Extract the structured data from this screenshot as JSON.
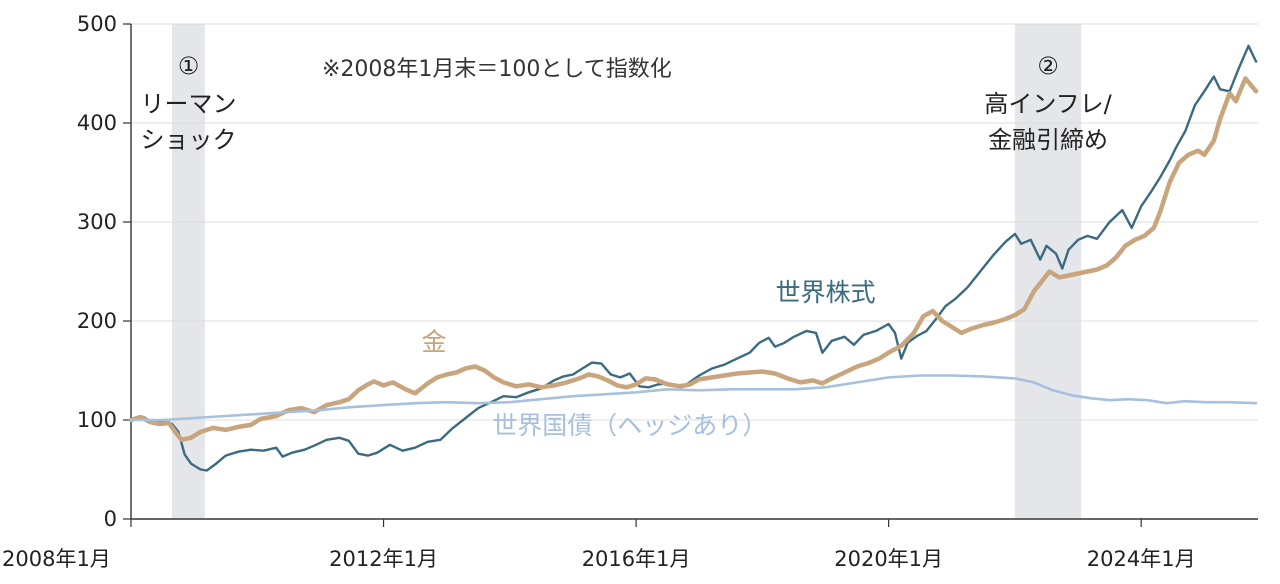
{
  "chart_data": {
    "type": "line",
    "title": "",
    "note": "※2008年1月末＝100として指数化",
    "xlabel": "",
    "ylabel": "",
    "x_range": [
      2008.0,
      2025.85
    ],
    "ylim": [
      0,
      500
    ],
    "yticks": [
      0,
      100,
      200,
      300,
      400,
      500
    ],
    "xticks": [
      {
        "value": 2008.0,
        "label": "2008年1月"
      },
      {
        "value": 2012.0,
        "label": "2012年1月"
      },
      {
        "value": 2016.0,
        "label": "2016年1月"
      },
      {
        "value": 2020.0,
        "label": "2020年1月"
      },
      {
        "value": 2024.0,
        "label": "2024年1月"
      }
    ],
    "grid": "horizontal",
    "shaded_periods": [
      {
        "marker": "①",
        "label_lines": [
          "リーマン",
          "ショック"
        ],
        "x_start": 2008.65,
        "x_end": 2009.17
      },
      {
        "marker": "②",
        "label_lines": [
          "高インフレ/",
          "金融引締め"
        ],
        "x_start": 2022.0,
        "x_end": 2023.05
      }
    ],
    "series": [
      {
        "name": "世界株式",
        "color": "#3b6b80",
        "width": 2.4,
        "label_pos": {
          "x": 2019.0,
          "y": 220
        },
        "points": [
          [
            2008.0,
            100
          ],
          [
            2008.2,
            103
          ],
          [
            2008.35,
            97
          ],
          [
            2008.5,
            100
          ],
          [
            2008.65,
            96
          ],
          [
            2008.75,
            88
          ],
          [
            2008.85,
            65
          ],
          [
            2008.95,
            56
          ],
          [
            2009.1,
            50
          ],
          [
            2009.2,
            49
          ],
          [
            2009.35,
            56
          ],
          [
            2009.5,
            64
          ],
          [
            2009.7,
            68
          ],
          [
            2009.9,
            70
          ],
          [
            2010.1,
            69
          ],
          [
            2010.3,
            72
          ],
          [
            2010.4,
            63
          ],
          [
            2010.55,
            67
          ],
          [
            2010.75,
            70
          ],
          [
            2010.9,
            74
          ],
          [
            2011.1,
            80
          ],
          [
            2011.3,
            82
          ],
          [
            2011.45,
            79
          ],
          [
            2011.6,
            66
          ],
          [
            2011.75,
            64
          ],
          [
            2011.9,
            67
          ],
          [
            2012.1,
            75
          ],
          [
            2012.3,
            69
          ],
          [
            2012.5,
            72
          ],
          [
            2012.7,
            78
          ],
          [
            2012.9,
            80
          ],
          [
            2013.1,
            92
          ],
          [
            2013.3,
            102
          ],
          [
            2013.5,
            112
          ],
          [
            2013.7,
            118
          ],
          [
            2013.9,
            124
          ],
          [
            2014.1,
            123
          ],
          [
            2014.3,
            128
          ],
          [
            2014.5,
            132
          ],
          [
            2014.7,
            140
          ],
          [
            2014.85,
            144
          ],
          [
            2015.0,
            146
          ],
          [
            2015.15,
            152
          ],
          [
            2015.3,
            158
          ],
          [
            2015.45,
            157
          ],
          [
            2015.6,
            146
          ],
          [
            2015.75,
            143
          ],
          [
            2015.9,
            147
          ],
          [
            2016.05,
            134
          ],
          [
            2016.2,
            133
          ],
          [
            2016.35,
            136
          ],
          [
            2016.5,
            137
          ],
          [
            2016.65,
            135
          ],
          [
            2016.8,
            136
          ],
          [
            2017.0,
            145
          ],
          [
            2017.2,
            152
          ],
          [
            2017.4,
            156
          ],
          [
            2017.6,
            162
          ],
          [
            2017.8,
            168
          ],
          [
            2017.95,
            178
          ],
          [
            2018.1,
            183
          ],
          [
            2018.2,
            174
          ],
          [
            2018.35,
            178
          ],
          [
            2018.5,
            184
          ],
          [
            2018.7,
            190
          ],
          [
            2018.85,
            188
          ],
          [
            2018.95,
            168
          ],
          [
            2019.1,
            180
          ],
          [
            2019.3,
            184
          ],
          [
            2019.45,
            176
          ],
          [
            2019.6,
            186
          ],
          [
            2019.8,
            190
          ],
          [
            2020.0,
            197
          ],
          [
            2020.1,
            188
          ],
          [
            2020.2,
            162
          ],
          [
            2020.3,
            178
          ],
          [
            2020.45,
            185
          ],
          [
            2020.6,
            190
          ],
          [
            2020.75,
            202
          ],
          [
            2020.9,
            215
          ],
          [
            2021.05,
            222
          ],
          [
            2021.25,
            234
          ],
          [
            2021.45,
            250
          ],
          [
            2021.65,
            266
          ],
          [
            2021.85,
            280
          ],
          [
            2022.0,
            288
          ],
          [
            2022.1,
            278
          ],
          [
            2022.25,
            282
          ],
          [
            2022.4,
            262
          ],
          [
            2022.5,
            276
          ],
          [
            2022.65,
            268
          ],
          [
            2022.75,
            253
          ],
          [
            2022.85,
            272
          ],
          [
            2023.0,
            282
          ],
          [
            2023.15,
            286
          ],
          [
            2023.3,
            283
          ],
          [
            2023.5,
            300
          ],
          [
            2023.7,
            312
          ],
          [
            2023.85,
            294
          ],
          [
            2024.0,
            316
          ],
          [
            2024.15,
            330
          ],
          [
            2024.3,
            345
          ],
          [
            2024.45,
            362
          ],
          [
            2024.55,
            375
          ],
          [
            2024.7,
            392
          ],
          [
            2024.85,
            418
          ],
          [
            2025.0,
            432
          ],
          [
            2025.15,
            447
          ],
          [
            2025.25,
            434
          ],
          [
            2025.4,
            432
          ],
          [
            2025.55,
            456
          ],
          [
            2025.7,
            478
          ],
          [
            2025.82,
            462
          ]
        ]
      },
      {
        "name": "金",
        "color": "#c8a57c",
        "width": 4.5,
        "label_pos": {
          "x": 2012.8,
          "y": 170
        },
        "points": [
          [
            2008.0,
            100
          ],
          [
            2008.15,
            103
          ],
          [
            2008.3,
            98
          ],
          [
            2008.45,
            96
          ],
          [
            2008.6,
            97
          ],
          [
            2008.7,
            88
          ],
          [
            2008.8,
            80
          ],
          [
            2008.95,
            82
          ],
          [
            2009.1,
            88
          ],
          [
            2009.3,
            92
          ],
          [
            2009.5,
            90
          ],
          [
            2009.7,
            93
          ],
          [
            2009.9,
            95
          ],
          [
            2010.05,
            101
          ],
          [
            2010.3,
            104
          ],
          [
            2010.5,
            110
          ],
          [
            2010.7,
            112
          ],
          [
            2010.9,
            108
          ],
          [
            2011.1,
            115
          ],
          [
            2011.3,
            118
          ],
          [
            2011.45,
            121
          ],
          [
            2011.6,
            130
          ],
          [
            2011.75,
            136
          ],
          [
            2011.85,
            139
          ],
          [
            2012.0,
            135
          ],
          [
            2012.15,
            138
          ],
          [
            2012.35,
            131
          ],
          [
            2012.5,
            127
          ],
          [
            2012.7,
            137
          ],
          [
            2012.85,
            143
          ],
          [
            2013.0,
            146
          ],
          [
            2013.15,
            148
          ],
          [
            2013.3,
            152
          ],
          [
            2013.45,
            154
          ],
          [
            2013.6,
            150
          ],
          [
            2013.75,
            143
          ],
          [
            2013.9,
            138
          ],
          [
            2014.1,
            134
          ],
          [
            2014.3,
            136
          ],
          [
            2014.5,
            133
          ],
          [
            2014.7,
            135
          ],
          [
            2014.9,
            138
          ],
          [
            2015.1,
            142
          ],
          [
            2015.25,
            146
          ],
          [
            2015.4,
            144
          ],
          [
            2015.55,
            140
          ],
          [
            2015.7,
            135
          ],
          [
            2015.85,
            133
          ],
          [
            2016.0,
            136
          ],
          [
            2016.15,
            142
          ],
          [
            2016.3,
            141
          ],
          [
            2016.5,
            136
          ],
          [
            2016.7,
            134
          ],
          [
            2016.85,
            136
          ],
          [
            2017.0,
            141
          ],
          [
            2017.2,
            143
          ],
          [
            2017.4,
            145
          ],
          [
            2017.6,
            147
          ],
          [
            2017.8,
            148
          ],
          [
            2018.0,
            149
          ],
          [
            2018.2,
            147
          ],
          [
            2018.4,
            142
          ],
          [
            2018.6,
            138
          ],
          [
            2018.8,
            140
          ],
          [
            2018.95,
            137
          ],
          [
            2019.1,
            142
          ],
          [
            2019.3,
            148
          ],
          [
            2019.5,
            154
          ],
          [
            2019.7,
            158
          ],
          [
            2019.85,
            162
          ],
          [
            2020.0,
            168
          ],
          [
            2020.2,
            175
          ],
          [
            2020.4,
            188
          ],
          [
            2020.55,
            205
          ],
          [
            2020.7,
            210
          ],
          [
            2020.85,
            200
          ],
          [
            2021.0,
            194
          ],
          [
            2021.15,
            188
          ],
          [
            2021.3,
            192
          ],
          [
            2021.5,
            196
          ],
          [
            2021.7,
            199
          ],
          [
            2021.85,
            202
          ],
          [
            2022.0,
            206
          ],
          [
            2022.15,
            212
          ],
          [
            2022.3,
            230
          ],
          [
            2022.45,
            242
          ],
          [
            2022.55,
            250
          ],
          [
            2022.7,
            244
          ],
          [
            2022.85,
            246
          ],
          [
            2023.0,
            248
          ],
          [
            2023.15,
            250
          ],
          [
            2023.3,
            252
          ],
          [
            2023.45,
            256
          ],
          [
            2023.6,
            264
          ],
          [
            2023.75,
            276
          ],
          [
            2023.9,
            282
          ],
          [
            2024.05,
            286
          ],
          [
            2024.2,
            294
          ],
          [
            2024.3,
            310
          ],
          [
            2024.45,
            340
          ],
          [
            2024.6,
            360
          ],
          [
            2024.75,
            368
          ],
          [
            2024.9,
            372
          ],
          [
            2025.0,
            368
          ],
          [
            2025.15,
            382
          ],
          [
            2025.25,
            404
          ],
          [
            2025.4,
            430
          ],
          [
            2025.5,
            422
          ],
          [
            2025.65,
            445
          ],
          [
            2025.82,
            432
          ]
        ]
      },
      {
        "name": "世界国債（ヘッジあり）",
        "color": "#a6c0de",
        "width": 2.6,
        "label_pos": {
          "x": 2015.9,
          "y": 86
        },
        "points": [
          [
            2008.0,
            100
          ],
          [
            2008.5,
            100
          ],
          [
            2009.0,
            102
          ],
          [
            2009.5,
            104
          ],
          [
            2010.0,
            106
          ],
          [
            2010.5,
            108
          ],
          [
            2011.0,
            110
          ],
          [
            2011.5,
            113
          ],
          [
            2012.0,
            115
          ],
          [
            2012.5,
            117
          ],
          [
            2013.0,
            118
          ],
          [
            2013.5,
            117
          ],
          [
            2014.0,
            118
          ],
          [
            2014.5,
            121
          ],
          [
            2015.0,
            124
          ],
          [
            2015.5,
            126
          ],
          [
            2016.0,
            128
          ],
          [
            2016.5,
            131
          ],
          [
            2017.0,
            130
          ],
          [
            2017.5,
            131
          ],
          [
            2018.0,
            131
          ],
          [
            2018.5,
            131
          ],
          [
            2019.0,
            133
          ],
          [
            2019.5,
            138
          ],
          [
            2020.0,
            143
          ],
          [
            2020.5,
            145
          ],
          [
            2021.0,
            145
          ],
          [
            2021.5,
            144
          ],
          [
            2022.0,
            142
          ],
          [
            2022.3,
            138
          ],
          [
            2022.6,
            130
          ],
          [
            2022.9,
            125
          ],
          [
            2023.2,
            122
          ],
          [
            2023.5,
            120
          ],
          [
            2023.8,
            121
          ],
          [
            2024.1,
            120
          ],
          [
            2024.4,
            117
          ],
          [
            2024.7,
            119
          ],
          [
            2025.0,
            118
          ],
          [
            2025.4,
            118
          ],
          [
            2025.82,
            117
          ]
        ]
      }
    ]
  }
}
